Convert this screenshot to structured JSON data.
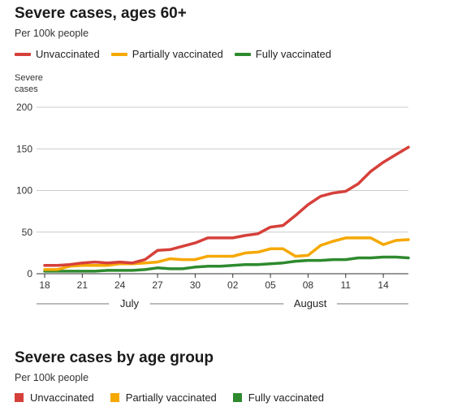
{
  "chart_data": [
    {
      "type": "line",
      "title": "Severe cases, ages 60+",
      "subtitle": "Per 100k people",
      "ylabel": "Severe\ncases",
      "ylim": [
        0,
        200
      ],
      "yticks": [
        "0",
        "50",
        "100",
        "150",
        "200"
      ],
      "xticks": [
        "18",
        "21",
        "24",
        "27",
        "30",
        "02",
        "05",
        "08",
        "11",
        "14"
      ],
      "months": [
        "July",
        "August"
      ],
      "legend_position": "top-left",
      "grid": true,
      "x": [
        18,
        19,
        20,
        21,
        22,
        23,
        24,
        25,
        26,
        27,
        28,
        29,
        30,
        31,
        1,
        2,
        3,
        4,
        5,
        6,
        7,
        8,
        9,
        10,
        11,
        12,
        13,
        14,
        15,
        16
      ],
      "series": [
        {
          "name": "Unvaccinated",
          "color": "#d6403a",
          "values": [
            10,
            10,
            11,
            13,
            14,
            13,
            14,
            13,
            17,
            28,
            29,
            33,
            37,
            43,
            43,
            43,
            46,
            48,
            56,
            58,
            70,
            83,
            93,
            97,
            99,
            108,
            123,
            134,
            143,
            152
          ]
        },
        {
          "name": "Partially vaccinated",
          "color": "#f5a800",
          "values": [
            5,
            5,
            9,
            10,
            10,
            10,
            12,
            12,
            13,
            14,
            18,
            17,
            17,
            21,
            21,
            21,
            25,
            26,
            30,
            30,
            21,
            22,
            34,
            39,
            43,
            43,
            43,
            35,
            40,
            41
          ]
        },
        {
          "name": "Fully vaccinated",
          "color": "#2e8a2e",
          "values": [
            3,
            3,
            3,
            3,
            3,
            4,
            4,
            4,
            5,
            7,
            6,
            6,
            8,
            9,
            9,
            10,
            11,
            11,
            12,
            13,
            15,
            16,
            16,
            17,
            17,
            19,
            19,
            20,
            20,
            19
          ]
        }
      ]
    },
    {
      "type": "bar",
      "title": "Severe cases by age group",
      "subtitle": "Per 100k people",
      "series": [
        {
          "name": "Unvaccinated",
          "color": "#d6403a"
        },
        {
          "name": "Partially vaccinated",
          "color": "#f5a800"
        },
        {
          "name": "Fully vaccinated",
          "color": "#2e8a2e"
        }
      ]
    }
  ]
}
